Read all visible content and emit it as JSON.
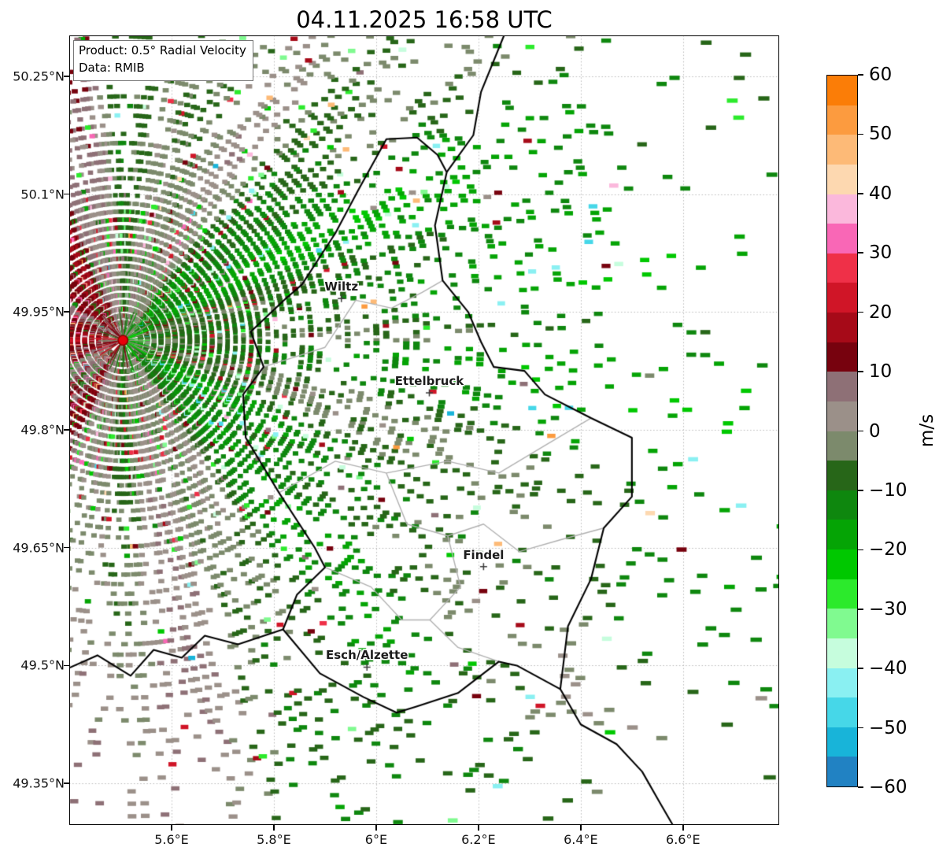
{
  "title": "04.11.2025 16:58 UTC",
  "annotation": {
    "line1": "Product: 0.5° Radial Velocity",
    "line2": "Data: RMIB"
  },
  "axes": {
    "lon_range": [
      5.4,
      6.788
    ],
    "lat_range": [
      49.297,
      50.302
    ],
    "x_ticks": [
      {
        "value": 5.6,
        "label": "5.6°E"
      },
      {
        "value": 5.8,
        "label": "5.8°E"
      },
      {
        "value": 6.0,
        "label": "6°E"
      },
      {
        "value": 6.2,
        "label": "6.2°E"
      },
      {
        "value": 6.4,
        "label": "6.4°E"
      },
      {
        "value": 6.6,
        "label": "6.6°E"
      }
    ],
    "y_ticks": [
      {
        "value": 50.25,
        "label": "50.25°N"
      },
      {
        "value": 50.1,
        "label": "50.1°N"
      },
      {
        "value": 49.95,
        "label": "49.95°N"
      },
      {
        "value": 49.8,
        "label": "49.8°N"
      },
      {
        "value": 49.65,
        "label": "49.65°N"
      },
      {
        "value": 49.5,
        "label": "49.5°N"
      },
      {
        "value": 49.35,
        "label": "49.35°N"
      }
    ]
  },
  "colorbar": {
    "label": "m/s",
    "ticks": [
      {
        "value": 60,
        "label": "60"
      },
      {
        "value": 50,
        "label": "50"
      },
      {
        "value": 40,
        "label": "40"
      },
      {
        "value": 30,
        "label": "30"
      },
      {
        "value": 20,
        "label": "20"
      },
      {
        "value": 10,
        "label": "10"
      },
      {
        "value": 0,
        "label": "0"
      },
      {
        "value": -10,
        "label": "−10"
      },
      {
        "value": -20,
        "label": "−20"
      },
      {
        "value": -30,
        "label": "−30"
      },
      {
        "value": -40,
        "label": "−40"
      },
      {
        "value": -50,
        "label": "−50"
      },
      {
        "value": -60,
        "label": "−60"
      }
    ],
    "bands": [
      {
        "from": 60,
        "to": 55,
        "color": "#fb7d07"
      },
      {
        "from": 55,
        "to": 50,
        "color": "#fc9b3f"
      },
      {
        "from": 50,
        "to": 45,
        "color": "#fdba77"
      },
      {
        "from": 45,
        "to": 40,
        "color": "#fdd8b0"
      },
      {
        "from": 40,
        "to": 35,
        "color": "#fbb8dc"
      },
      {
        "from": 35,
        "to": 30,
        "color": "#f967b6"
      },
      {
        "from": 30,
        "to": 25,
        "color": "#ef3048"
      },
      {
        "from": 25,
        "to": 20,
        "color": "#d01527"
      },
      {
        "from": 20,
        "to": 15,
        "color": "#a60a18"
      },
      {
        "from": 15,
        "to": 10,
        "color": "#77020e"
      },
      {
        "from": 10,
        "to": 5,
        "color": "#8e7076"
      },
      {
        "from": 5,
        "to": 0,
        "color": "#9b9089"
      },
      {
        "from": 0,
        "to": -5,
        "color": "#7c8a6c"
      },
      {
        "from": -5,
        "to": -10,
        "color": "#276618"
      },
      {
        "from": -10,
        "to": -15,
        "color": "#0e870e"
      },
      {
        "from": -15,
        "to": -20,
        "color": "#05a405"
      },
      {
        "from": -20,
        "to": -25,
        "color": "#00c800"
      },
      {
        "from": -25,
        "to": -30,
        "color": "#2cea2c"
      },
      {
        "from": -30,
        "to": -35,
        "color": "#80fa90"
      },
      {
        "from": -35,
        "to": -40,
        "color": "#c6fddd"
      },
      {
        "from": -40,
        "to": -45,
        "color": "#8af0f2"
      },
      {
        "from": -45,
        "to": -50,
        "color": "#46d7e8"
      },
      {
        "from": -50,
        "to": -55,
        "color": "#18b4d9"
      },
      {
        "from": -55,
        "to": -60,
        "color": "#2182c3"
      }
    ]
  },
  "chart_data": {
    "type": "heatmap",
    "title": "04.11.2025 16:58 UTC",
    "product": "0.5° Radial Velocity",
    "data_source": "RMIB",
    "units": "m/s",
    "value_range": [
      -60,
      60
    ],
    "axis_ranges": {
      "lon": [
        5.4,
        6.788
      ],
      "lat": [
        49.297,
        50.302
      ]
    },
    "grid": true,
    "legend_position": "right-colorbar",
    "radar_site": {
      "lon": 5.505,
      "lat": 49.914
    },
    "cities": [
      {
        "name": "Wiltz",
        "lon": 5.932,
        "lat": 49.967
      },
      {
        "name": "Ettelbruck",
        "lon": 6.104,
        "lat": 49.847
      },
      {
        "name": "Findel",
        "lon": 6.21,
        "lat": 49.626
      },
      {
        "name": "Esch/Alzette",
        "lon": 5.982,
        "lat": 49.498
      }
    ],
    "map_borders": {
      "national": [
        [
          [
            6.25,
            50.302
          ],
          [
            6.205,
            50.23
          ],
          [
            6.19,
            50.175
          ],
          [
            6.138,
            50.128
          ]
        ],
        [
          [
            6.138,
            50.128
          ],
          [
            6.115,
            50.06
          ],
          [
            6.13,
            49.99
          ],
          [
            6.18,
            49.95
          ],
          [
            6.205,
            49.912
          ],
          [
            6.23,
            49.88
          ],
          [
            6.29,
            49.875
          ],
          [
            6.33,
            49.845
          ],
          [
            6.42,
            49.815
          ],
          [
            6.5,
            49.79
          ],
          [
            6.5,
            49.715
          ],
          [
            6.445,
            49.675
          ],
          [
            6.42,
            49.61
          ],
          [
            6.375,
            49.55
          ],
          [
            6.36,
            49.47
          ],
          [
            6.275,
            49.5
          ],
          [
            6.24,
            49.505
          ],
          [
            6.16,
            49.465
          ],
          [
            6.08,
            49.448
          ],
          [
            6.04,
            49.44
          ],
          [
            5.975,
            49.46
          ],
          [
            5.89,
            49.49
          ],
          [
            5.818,
            49.546
          ],
          [
            5.845,
            49.59
          ],
          [
            5.9,
            49.625
          ],
          [
            5.88,
            49.65
          ],
          [
            5.81,
            49.72
          ],
          [
            5.745,
            49.79
          ],
          [
            5.74,
            49.845
          ],
          [
            5.78,
            49.88
          ],
          [
            5.755,
            49.925
          ],
          [
            5.82,
            49.965
          ],
          [
            5.855,
            49.985
          ],
          [
            5.92,
            50.05
          ],
          [
            5.965,
            50.105
          ],
          [
            6.02,
            50.17
          ],
          [
            6.08,
            50.172
          ],
          [
            6.12,
            50.15
          ],
          [
            6.138,
            50.128
          ]
        ],
        [
          [
            5.4,
            49.497
          ],
          [
            5.455,
            49.513
          ],
          [
            5.52,
            49.487
          ],
          [
            5.565,
            49.52
          ],
          [
            5.62,
            49.51
          ],
          [
            5.665,
            49.538
          ],
          [
            5.73,
            49.527
          ],
          [
            5.818,
            49.546
          ]
        ],
        [
          [
            6.36,
            49.47
          ],
          [
            6.4,
            49.425
          ],
          [
            6.47,
            49.4
          ],
          [
            6.52,
            49.365
          ],
          [
            6.555,
            49.325
          ],
          [
            6.58,
            49.297
          ]
        ]
      ],
      "regional": [
        [
          [
            5.78,
            49.88
          ],
          [
            5.9,
            49.905
          ],
          [
            5.96,
            49.965
          ],
          [
            6.03,
            49.955
          ],
          [
            6.09,
            49.975
          ],
          [
            6.13,
            49.99
          ]
        ],
        [
          [
            5.81,
            49.72
          ],
          [
            5.92,
            49.76
          ],
          [
            6.02,
            49.745
          ],
          [
            6.14,
            49.76
          ],
          [
            6.24,
            49.745
          ],
          [
            6.33,
            49.78
          ],
          [
            6.42,
            49.815
          ]
        ],
        [
          [
            6.02,
            49.745
          ],
          [
            6.06,
            49.68
          ],
          [
            6.14,
            49.665
          ],
          [
            6.21,
            49.68
          ],
          [
            6.28,
            49.645
          ],
          [
            6.36,
            49.66
          ],
          [
            6.445,
            49.675
          ]
        ],
        [
          [
            6.14,
            49.665
          ],
          [
            6.165,
            49.6
          ],
          [
            6.105,
            49.558
          ],
          [
            6.16,
            49.523
          ],
          [
            6.24,
            49.505
          ]
        ],
        [
          [
            5.9,
            49.625
          ],
          [
            5.99,
            49.6
          ],
          [
            6.05,
            49.558
          ],
          [
            6.105,
            49.558
          ]
        ]
      ]
    }
  }
}
